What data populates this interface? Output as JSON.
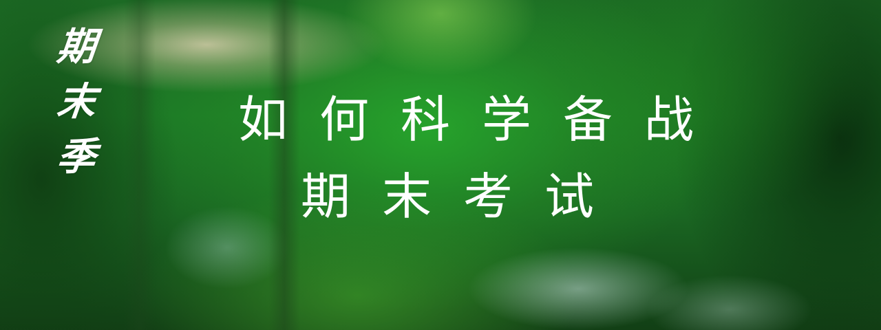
{
  "banner": {
    "side_title": [
      "期",
      "末",
      "季"
    ],
    "headline_line1": "如何科学备战",
    "headline_line2": "期末考试",
    "colors": {
      "text": "#ffffff",
      "forest_green": "#1d7a26",
      "dark_green": "#123f15"
    }
  }
}
